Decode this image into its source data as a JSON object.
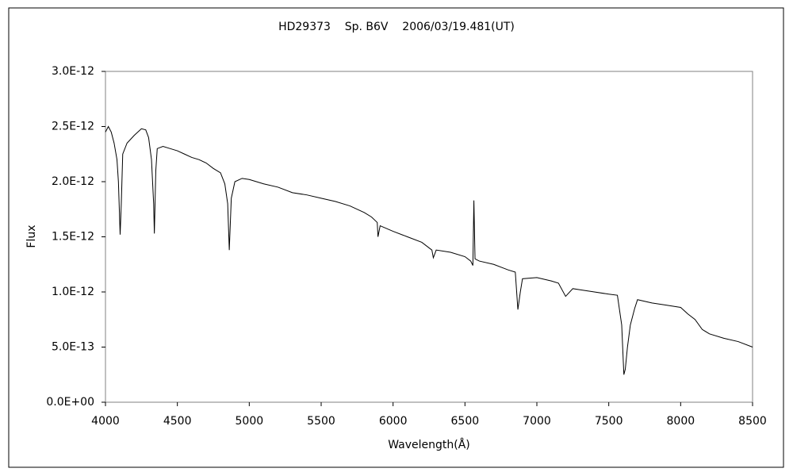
{
  "chart_data": {
    "type": "line",
    "title": "HD29373    Sp. B6V    2006/03/19.481(UT)",
    "x_label": "Wavelength(Å)",
    "y_label": "Flux",
    "xlim": [
      4000,
      8500
    ],
    "xticks": [
      4000,
      4500,
      5000,
      5500,
      6000,
      6500,
      7000,
      7500,
      8000,
      8500
    ],
    "ylim": [
      0,
      3e-12
    ],
    "yticks": [
      {
        "value": 0,
        "label": "0.0E+00"
      },
      {
        "value": 5e-13,
        "label": "5.0E-13"
      },
      {
        "value": 1e-12,
        "label": "1.0E-12"
      },
      {
        "value": 1.5e-12,
        "label": "1.5E-12"
      },
      {
        "value": 2e-12,
        "label": "2.0E-12"
      },
      {
        "value": 2.5e-12,
        "label": "2.5E-12"
      },
      {
        "value": 3e-12,
        "label": "3.0E-12"
      }
    ],
    "grid": false,
    "series": [
      {
        "name": "Flux",
        "color": "#000000",
        "x": [
          4000,
          4020,
          4040,
          4060,
          4080,
          4090,
          4100,
          4102,
          4110,
          4120,
          4150,
          4200,
          4250,
          4280,
          4300,
          4320,
          4335,
          4340,
          4350,
          4360,
          4400,
          4450,
          4500,
          4550,
          4600,
          4650,
          4700,
          4750,
          4800,
          4830,
          4850,
          4861,
          4875,
          4900,
          4950,
          5000,
          5100,
          5200,
          5300,
          5400,
          5500,
          5600,
          5700,
          5800,
          5850,
          5890,
          5895,
          5910,
          6000,
          6100,
          6200,
          6270,
          6280,
          6300,
          6400,
          6500,
          6540,
          6555,
          6562,
          6570,
          6600,
          6700,
          6800,
          6850,
          6868,
          6885,
          6900,
          7000,
          7100,
          7150,
          7200,
          7250,
          7300,
          7400,
          7500,
          7560,
          7590,
          7605,
          7615,
          7630,
          7650,
          7680,
          7700,
          7800,
          7900,
          8000,
          8050,
          8100,
          8150,
          8200,
          8300,
          8400,
          8500
        ],
        "values": [
          2.45e-12,
          2.5e-12,
          2.45e-12,
          2.35e-12,
          2.2e-12,
          2e-12,
          1.6e-12,
          1.52e-12,
          1.8e-12,
          2.25e-12,
          2.35e-12,
          2.42e-12,
          2.48e-12,
          2.47e-12,
          2.4e-12,
          2.2e-12,
          1.8e-12,
          1.53e-12,
          2.1e-12,
          2.3e-12,
          2.32e-12,
          2.3e-12,
          2.28e-12,
          2.25e-12,
          2.22e-12,
          2.2e-12,
          2.17e-12,
          2.12e-12,
          2.08e-12,
          1.98e-12,
          1.8e-12,
          1.38e-12,
          1.85e-12,
          2e-12,
          2.03e-12,
          2.02e-12,
          1.98e-12,
          1.95e-12,
          1.9e-12,
          1.88e-12,
          1.85e-12,
          1.82e-12,
          1.78e-12,
          1.72e-12,
          1.68e-12,
          1.63e-12,
          1.5e-12,
          1.6e-12,
          1.55e-12,
          1.5e-12,
          1.45e-12,
          1.38e-12,
          1.31e-12,
          1.38e-12,
          1.36e-12,
          1.32e-12,
          1.28e-12,
          1.24e-12,
          1.83e-12,
          1.3e-12,
          1.28e-12,
          1.25e-12,
          1.2e-12,
          1.18e-12,
          8.4e-13,
          1e-12,
          1.12e-12,
          1.13e-12,
          1.1e-12,
          1.08e-12,
          9.6e-13,
          1.03e-12,
          1.02e-12,
          1e-12,
          9.8e-13,
          9.7e-13,
          7e-13,
          2.5e-13,
          3e-13,
          5e-13,
          7e-13,
          8.5e-13,
          9.3e-13,
          9e-13,
          8.8e-13,
          8.6e-13,
          8e-13,
          7.5e-13,
          6.6e-13,
          6.2e-13,
          5.8e-13,
          5.5e-13,
          5e-13
        ]
      }
    ]
  }
}
